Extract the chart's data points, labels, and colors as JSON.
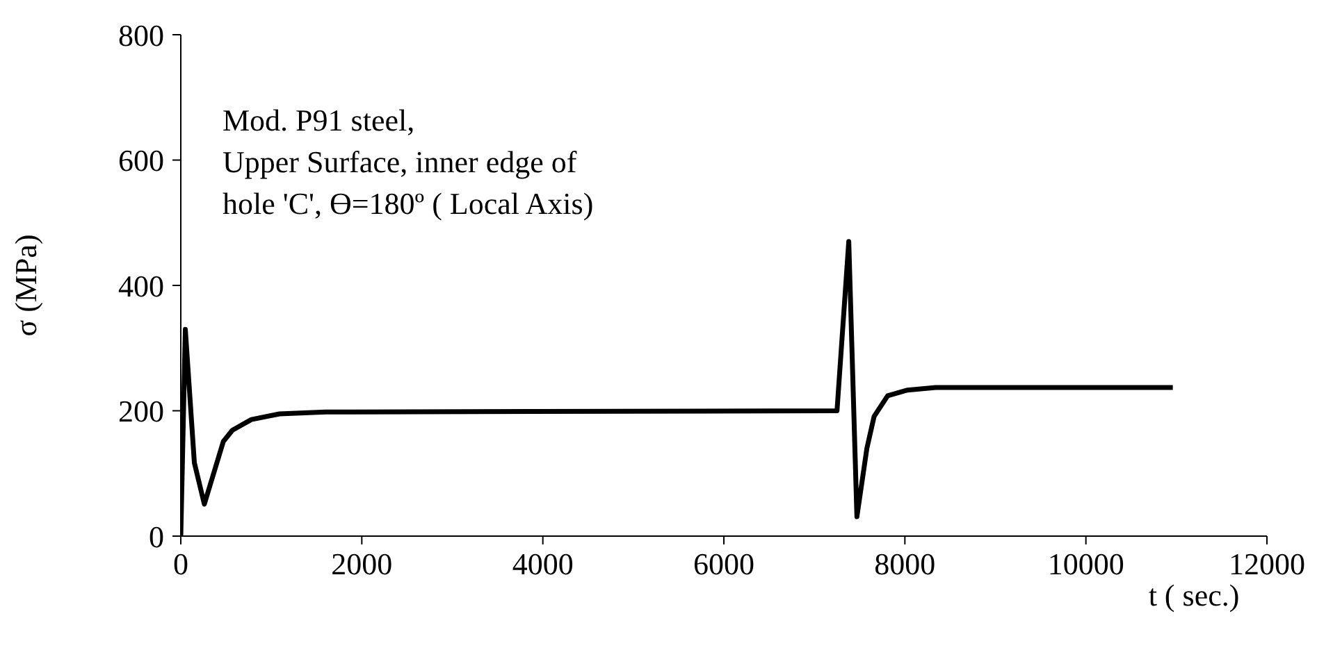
{
  "chart_data": {
    "type": "line",
    "xlabel": "t ( sec.)",
    "ylabel": "σ (MPa)",
    "annotations": [
      "Mod. P91 steel,\nUpper Surface, inner edge of\nhole 'C', Ө=180º ( Local Axis)"
    ],
    "x": [
      0,
      50,
      150,
      260,
      470,
      570,
      780,
      1090,
      1600,
      7250,
      7380,
      7470,
      7580,
      7660,
      7810,
      8030,
      8340,
      10960
    ],
    "series": [
      {
        "color": "#000000",
        "values": [
          0,
          330,
          117,
          51,
          151,
          169,
          186,
          195,
          198,
          200,
          470,
          31,
          140,
          191,
          224,
          233,
          237,
          237
        ]
      }
    ],
    "xlim": [
      0,
      12000
    ],
    "xticks": [
      0,
      2000,
      4000,
      6000,
      8000,
      10000,
      12000
    ],
    "ylim": [
      0,
      800
    ],
    "yticks": [
      0,
      200,
      400,
      600,
      800
    ],
    "grid": false,
    "legend": false,
    "marker": "none",
    "line_style": "solid"
  }
}
